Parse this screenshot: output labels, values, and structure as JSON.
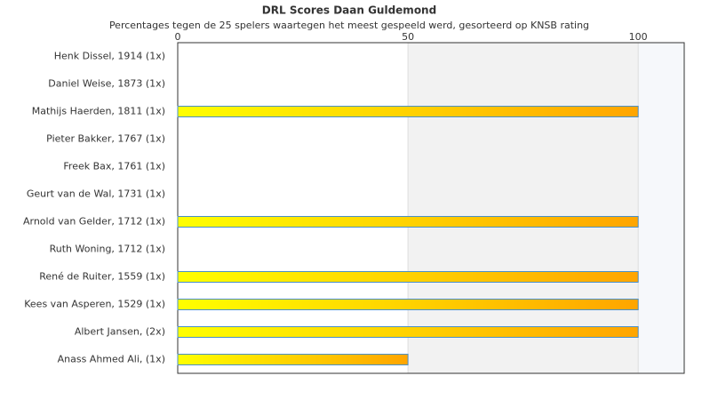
{
  "chart_data": {
    "type": "bar",
    "orientation": "horizontal",
    "title": "DRL Scores Daan Guldemond",
    "subtitle": "Percentages tegen de 25 spelers waartegen het meest gespeeld werd, gesorteerd op KNSB rating",
    "categories": [
      "Henk Dissel, 1914 (1x)",
      "Daniel Weise, 1873 (1x)",
      "Mathijs Haerden, 1811 (1x)",
      "Pieter Bakker, 1767 (1x)",
      "Freek Bax, 1761 (1x)",
      "Geurt van de Wal, 1731 (1x)",
      "Arnold van Gelder, 1712 (1x)",
      "Ruth Woning, 1712 (1x)",
      "René de Ruiter, 1559 (1x)",
      "Kees van Asperen, 1529 (1x)",
      "Albert Jansen,  (2x)",
      "Anass Ahmed Ali,  (1x)"
    ],
    "values": [
      0,
      0,
      100,
      0,
      0,
      0,
      100,
      0,
      100,
      100,
      100,
      50
    ],
    "color": [
      "#ffff00",
      "#ffa500"
    ],
    "border_color": "#4a90c8",
    "xlim": [
      0,
      110
    ],
    "xticks": [
      0,
      50,
      100
    ],
    "grid": true
  }
}
